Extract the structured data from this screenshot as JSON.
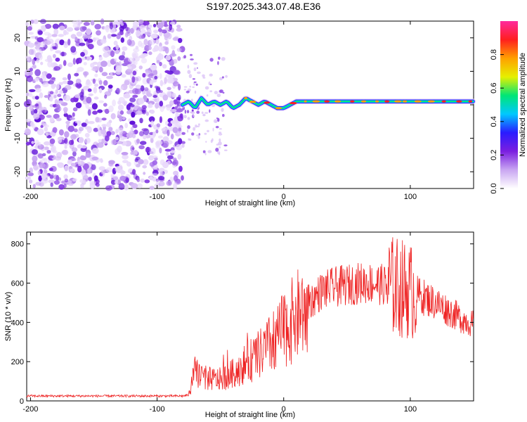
{
  "title": "S197.2025.343.07.48.E36",
  "chart_data": [
    {
      "type": "heatmap",
      "name": "spectrogram",
      "xlabel": "Height of straight line (km)",
      "ylabel": "Frequency (Hz)",
      "xlim": [
        -203,
        150
      ],
      "ylim": [
        -25,
        25
      ],
      "xticks": [
        -200,
        -100,
        0,
        100
      ],
      "yticks": [
        -20,
        -10,
        0,
        10,
        20
      ],
      "noise_region_x": [
        -203,
        -80
      ],
      "signal_band": [
        [
          -80,
          0
        ],
        [
          -75,
          1
        ],
        [
          -70,
          -1
        ],
        [
          -65,
          2
        ],
        [
          -60,
          0
        ],
        [
          -55,
          1
        ],
        [
          -50,
          0
        ],
        [
          -45,
          1
        ],
        [
          -40,
          -1
        ],
        [
          -35,
          0
        ],
        [
          -30,
          2
        ],
        [
          -25,
          1
        ],
        [
          -20,
          0
        ],
        [
          -15,
          1
        ],
        [
          -10,
          0
        ],
        [
          -5,
          -1
        ],
        [
          0,
          -1
        ],
        [
          5,
          0
        ],
        [
          10,
          1
        ],
        [
          20,
          1
        ],
        [
          40,
          1
        ],
        [
          60,
          1
        ],
        [
          80,
          1
        ],
        [
          100,
          1
        ],
        [
          120,
          1
        ],
        [
          150,
          1
        ]
      ],
      "colorbar": {
        "label": "Normalized spectral amplitude",
        "range": [
          0.0,
          1.0
        ],
        "ticks": [
          "0.0",
          "0.2",
          "0.4",
          "0.6",
          "0.8"
        ],
        "colors": [
          "#ffffff",
          "#c9a6f2",
          "#7b1fe0",
          "#2a1bff",
          "#00c8ff",
          "#00e676",
          "#e6f000",
          "#ffa000",
          "#ff1f1f",
          "#ff2a9d"
        ]
      }
    },
    {
      "type": "line",
      "name": "snr",
      "xlabel": "Height of straight line (km)",
      "ylabel": "SNR (10 * v/v)",
      "xlim": [
        -203,
        150
      ],
      "ylim": [
        0,
        860
      ],
      "xticks": [
        -200,
        -100,
        0,
        100
      ],
      "yticks": [
        0,
        200,
        400,
        600,
        800
      ],
      "line_color": "#ee2222",
      "envelope": [
        [
          -203,
          25
        ],
        [
          -80,
          25
        ],
        [
          -75,
          30
        ],
        [
          -70,
          150
        ],
        [
          -65,
          130
        ],
        [
          -60,
          110
        ],
        [
          -50,
          110
        ],
        [
          -40,
          140
        ],
        [
          -30,
          190
        ],
        [
          -20,
          230
        ],
        [
          -10,
          290
        ],
        [
          0,
          360
        ],
        [
          10,
          430
        ],
        [
          20,
          500
        ],
        [
          30,
          560
        ],
        [
          40,
          580
        ],
        [
          50,
          590
        ],
        [
          60,
          600
        ],
        [
          70,
          600
        ],
        [
          80,
          590
        ],
        [
          90,
          580
        ],
        [
          100,
          560
        ],
        [
          110,
          530
        ],
        [
          120,
          500
        ],
        [
          130,
          460
        ],
        [
          140,
          420
        ],
        [
          150,
          390
        ]
      ]
    }
  ]
}
